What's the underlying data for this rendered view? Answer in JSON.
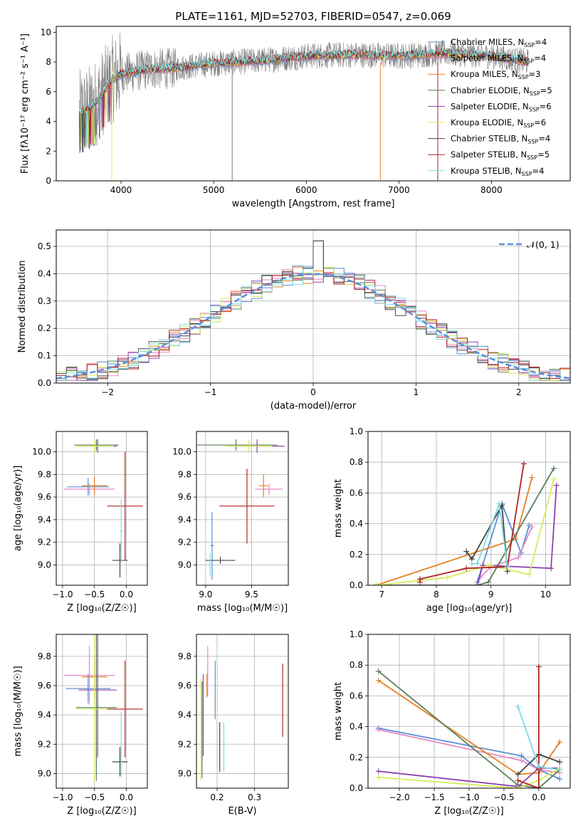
{
  "figure_title": "PLATE=1161, MJD=52703, FIBERID=0547, z=0.069",
  "colors": {
    "spec": "#808080",
    "gauss": "#5b8ddb",
    "chab_miles": "#5a8fd8",
    "salp_miles": "#e58ac4",
    "krou_miles": "#e67e22",
    "chab_elodie": "#5a7f5a",
    "salp_elodie": "#8e44ad",
    "krou_elodie": "#d4ec5a",
    "chab_stelib": "#444444",
    "salp_stelib": "#b22222",
    "krou_stelib": "#7fdbe0"
  },
  "legend_models": [
    {
      "name": "Chabrier MILES",
      "n": "4",
      "color": "#5a8fd8"
    },
    {
      "name": "Salpeter MILES",
      "n": "4",
      "color": "#e58ac4"
    },
    {
      "name": "Kroupa MILES",
      "n": "3",
      "color": "#e67e22"
    },
    {
      "name": "Chabrier ELODIE",
      "n": "5",
      "color": "#5a7f5a"
    },
    {
      "name": "Salpeter ELODIE",
      "n": "6",
      "color": "#8e44ad"
    },
    {
      "name": "Kroupa ELODIE",
      "n": "6",
      "color": "#d4ec5a"
    },
    {
      "name": "Chabrier STELIB",
      "n": "4",
      "color": "#444444"
    },
    {
      "name": "Salpeter STELIB",
      "n": "5",
      "color": "#b22222"
    },
    {
      "name": "Kroupa STELIB",
      "n": "4",
      "color": "#7fdbe0"
    }
  ],
  "chart_data": [
    {
      "type": "line",
      "id": "spectrum",
      "xlabel": "wavelength [Angstrom, rest frame]",
      "ylabel": "Flux [fλ10⁻¹⁷ erg cm⁻² s⁻¹ A⁻¹]",
      "xlim": [
        3300,
        8850
      ],
      "ylim": [
        0,
        10.4
      ],
      "xticks": [
        4000,
        5000,
        6000,
        7000,
        8000
      ],
      "yticks": [
        0,
        2,
        4,
        6,
        8,
        10
      ],
      "legend": "top-right",
      "x_range_data": [
        3550,
        8400
      ],
      "model_continuum_x": [
        3550,
        3700,
        3900,
        4000,
        4300,
        4600,
        5000,
        5500,
        6000,
        6500,
        7000,
        7500,
        8000,
        8400
      ],
      "model_continuum_y": [
        4.5,
        5.0,
        6.8,
        7.2,
        7.5,
        7.6,
        7.9,
        8.1,
        8.4,
        8.5,
        8.4,
        8.6,
        8.4,
        8.0
      ]
    },
    {
      "type": "line",
      "id": "residuals",
      "xlabel": "(data-model)/error",
      "ylabel": "Normed distribution",
      "xlim": [
        -2.5,
        2.5
      ],
      "ylim": [
        0,
        0.56
      ],
      "xticks": [
        -2,
        -1,
        0,
        1,
        2
      ],
      "yticks": [
        0.0,
        0.1,
        0.2,
        0.3,
        0.4,
        0.5
      ],
      "legend_label": "𝒩(0, 1)",
      "legend": "top-right",
      "gauss_sigma": 1.0
    },
    {
      "type": "scatter",
      "id": "age_vs_Z",
      "xlabel": "Z [log₁₀(Z/Z☉)]",
      "ylabel": "age  [log₁₀(age/yr)]",
      "xlim": [
        -1.1,
        0.33
      ],
      "ylim": [
        8.82,
        10.18
      ],
      "xticks": [
        -1.0,
        -0.5,
        0.0
      ],
      "yticks": [
        9.0,
        9.2,
        9.4,
        9.6,
        9.8,
        10.0
      ],
      "points": [
        {
          "x": -0.6,
          "y": 9.69,
          "xerr": 0.33,
          "yerr": 0.08,
          "color": "#5a8fd8"
        },
        {
          "x": -0.58,
          "y": 9.67,
          "xerr": 0.4,
          "yerr": 0.05,
          "color": "#e58ac4"
        },
        {
          "x": -0.5,
          "y": 9.7,
          "xerr": 0.2,
          "yerr": 0.08,
          "color": "#e67e22"
        },
        {
          "x": -0.47,
          "y": 10.06,
          "xerr": 0.35,
          "yerr": 0.05,
          "color": "#5a7f5a"
        },
        {
          "x": -0.45,
          "y": 10.05,
          "xerr": 0.3,
          "yerr": 0.06,
          "color": "#8e44ad"
        },
        {
          "x": -0.5,
          "y": 10.05,
          "xerr": 0.3,
          "yerr": 0.06,
          "color": "#d4ec5a"
        },
        {
          "x": -0.1,
          "y": 9.04,
          "xerr": 0.12,
          "yerr": 0.15,
          "color": "#444444"
        },
        {
          "x": -0.02,
          "y": 9.52,
          "xerr": 0.28,
          "yerr": 0.48,
          "color": "#b22222"
        },
        {
          "x": -0.08,
          "y": 9.3,
          "xerr": 0.02,
          "yerr": 0.28,
          "color": "#7fdbe0"
        }
      ]
    },
    {
      "type": "scatter",
      "id": "age_vs_mass",
      "xlabel": "mass [log₁₀(M/M☉)]",
      "ylabel": "",
      "xlim": [
        8.9,
        9.9
      ],
      "ylim": [
        8.82,
        10.18
      ],
      "xticks": [
        9.0,
        9.5
      ],
      "yticks": [
        9.0,
        9.2,
        9.4,
        9.6,
        9.8,
        10.0
      ],
      "points": [
        {
          "x": 9.07,
          "y": 9.17,
          "xerr": 0.02,
          "yerr": 0.3,
          "color": "#5a8fd8"
        },
        {
          "x": 9.69,
          "y": 9.67,
          "xerr": 0.15,
          "yerr": 0.05,
          "color": "#e58ac4"
        },
        {
          "x": 9.63,
          "y": 9.7,
          "xerr": 0.05,
          "yerr": 0.1,
          "color": "#e67e22"
        },
        {
          "x": 9.33,
          "y": 10.06,
          "xerr": 0.45,
          "yerr": 0.05,
          "color": "#5a7f5a"
        },
        {
          "x": 9.56,
          "y": 10.05,
          "xerr": 0.3,
          "yerr": 0.06,
          "color": "#8e44ad"
        },
        {
          "x": 9.47,
          "y": 10.05,
          "xerr": 0.25,
          "yerr": 0.06,
          "color": "#d4ec5a"
        },
        {
          "x": 9.16,
          "y": 9.04,
          "xerr": 0.16,
          "yerr": 0.03,
          "color": "#444444"
        },
        {
          "x": 9.45,
          "y": 9.52,
          "xerr": 0.3,
          "yerr": 0.33,
          "color": "#b22222"
        },
        {
          "x": 9.05,
          "y": 9.0,
          "xerr": 0.02,
          "yerr": 0.1,
          "color": "#7fdbe0"
        }
      ]
    },
    {
      "type": "line",
      "id": "massweight_vs_age",
      "xlabel": "age  [log₁₀(age/yr)]",
      "ylabel": "mass weight",
      "xlim": [
        6.75,
        10.45
      ],
      "ylim": [
        0,
        1.0
      ],
      "xticks": [
        7,
        8,
        9,
        10
      ],
      "yticks": [
        0.0,
        0.2,
        0.4,
        0.6,
        0.8,
        1.0
      ],
      "series": [
        {
          "color": "#5a8fd8",
          "points": [
            [
              8.75,
              0.02
            ],
            [
              9.2,
              0.53
            ],
            [
              9.55,
              0.21
            ],
            [
              9.7,
              0.39
            ]
          ]
        },
        {
          "color": "#e58ac4",
          "points": [
            [
              8.8,
              0.05
            ],
            [
              9.0,
              0.12
            ],
            [
              9.5,
              0.18
            ],
            [
              9.75,
              0.38
            ]
          ]
        },
        {
          "color": "#e67e22",
          "points": [
            [
              6.9,
              0.0
            ],
            [
              9.45,
              0.3
            ],
            [
              9.75,
              0.7
            ]
          ]
        },
        {
          "color": "#5a7f5a",
          "points": [
            [
              6.9,
              0.0
            ],
            [
              8.75,
              0.0
            ],
            [
              8.95,
              0.02
            ],
            [
              10.15,
              0.76
            ]
          ]
        },
        {
          "color": "#8e44ad",
          "points": [
            [
              8.75,
              0.0
            ],
            [
              8.85,
              0.13
            ],
            [
              10.1,
              0.11
            ],
            [
              10.2,
              0.65
            ]
          ]
        },
        {
          "color": "#d4ec5a",
          "points": [
            [
              6.9,
              0.0
            ],
            [
              8.2,
              0.05
            ],
            [
              8.95,
              0.13
            ],
            [
              9.7,
              0.07
            ],
            [
              10.15,
              0.69
            ]
          ]
        },
        {
          "color": "#444444",
          "points": [
            [
              8.55,
              0.22
            ],
            [
              8.65,
              0.17
            ],
            [
              9.2,
              0.52
            ],
            [
              9.3,
              0.09
            ]
          ]
        },
        {
          "color": "#b22222",
          "points": [
            [
              7.7,
              0.02
            ],
            [
              7.7,
              0.04
            ],
            [
              8.55,
              0.11
            ],
            [
              9.3,
              0.12
            ],
            [
              9.6,
              0.79
            ]
          ]
        },
        {
          "color": "#7fdbe0",
          "points": [
            [
              8.65,
              0.14
            ],
            [
              8.75,
              0.14
            ],
            [
              9.15,
              0.53
            ],
            [
              9.3,
              0.12
            ]
          ]
        }
      ]
    },
    {
      "type": "scatter",
      "id": "mass_vs_Z",
      "xlabel": "Z [log₁₀(Z/Z☉)]",
      "ylabel": "mass [log₁₀(M/M☉)]",
      "xlim": [
        -1.1,
        0.33
      ],
      "ylim": [
        8.9,
        9.95
      ],
      "xticks": [
        -1.0,
        -0.5,
        0.0
      ],
      "yticks": [
        9.0,
        9.2,
        9.4,
        9.6,
        9.8
      ],
      "points": [
        {
          "x": -0.6,
          "y": 9.58,
          "xerr": 0.35,
          "yerr": 0.1,
          "color": "#5a8fd8"
        },
        {
          "x": -0.58,
          "y": 9.67,
          "xerr": 0.4,
          "yerr": 0.2,
          "color": "#e58ac4"
        },
        {
          "x": -0.5,
          "y": 9.66,
          "xerr": 0.2,
          "yerr": 0.13,
          "color": "#e67e22"
        },
        {
          "x": -0.47,
          "y": 9.45,
          "xerr": 0.32,
          "yerr": 0.5,
          "color": "#5a7f5a"
        },
        {
          "x": -0.45,
          "y": 9.57,
          "xerr": 0.3,
          "yerr": 0.46,
          "color": "#8e44ad"
        },
        {
          "x": -0.5,
          "y": 9.44,
          "xerr": 0.3,
          "yerr": 0.5,
          "color": "#d4ec5a"
        },
        {
          "x": -0.1,
          "y": 9.08,
          "xerr": 0.12,
          "yerr": 0.1,
          "color": "#444444"
        },
        {
          "x": -0.02,
          "y": 9.44,
          "xerr": 0.28,
          "yerr": 0.33,
          "color": "#b22222"
        },
        {
          "x": -0.08,
          "y": 9.2,
          "xerr": 0.02,
          "yerr": 0.22,
          "color": "#7fdbe0"
        }
      ]
    },
    {
      "type": "scatter",
      "id": "mass_vs_ebv",
      "xlabel": "E(B-V)",
      "ylabel": "",
      "xlim": [
        0.145,
        0.39
      ],
      "ylim": [
        8.9,
        9.95
      ],
      "xticks": [
        0.2,
        0.3
      ],
      "yticks": [
        9.0,
        9.2,
        9.4,
        9.6,
        9.8
      ],
      "points": [
        {
          "x": 0.195,
          "y": 9.57,
          "yerr": 0.2,
          "color": "#5a8fd8"
        },
        {
          "x": 0.175,
          "y": 9.7,
          "yerr": 0.17,
          "color": "#e58ac4"
        },
        {
          "x": 0.173,
          "y": 9.6,
          "yerr": 0.08,
          "color": "#e67e22"
        },
        {
          "x": 0.16,
          "y": 9.3,
          "yerr": 0.33,
          "color": "#5a7f5a"
        },
        {
          "x": 0.163,
          "y": 9.4,
          "yerr": 0.28,
          "color": "#8e44ad"
        },
        {
          "x": 0.157,
          "y": 9.3,
          "yerr": 0.35,
          "color": "#d4ec5a"
        },
        {
          "x": 0.207,
          "y": 9.18,
          "yerr": 0.17,
          "color": "#444444"
        },
        {
          "x": 0.375,
          "y": 9.5,
          "yerr": 0.25,
          "color": "#b22222"
        },
        {
          "x": 0.218,
          "y": 9.18,
          "yerr": 0.17,
          "color": "#7fdbe0"
        }
      ]
    },
    {
      "type": "line",
      "id": "massweight_vs_Z",
      "xlabel": "Z [log₁₀(Z/Z☉)]",
      "ylabel": "mass weight",
      "xlim": [
        -2.45,
        0.45
      ],
      "ylim": [
        0,
        1.0
      ],
      "xticks": [
        -2.0,
        -1.5,
        -1.0,
        -0.5,
        0.0
      ],
      "yticks": [
        0.0,
        0.2,
        0.4,
        0.6,
        0.8,
        1.0
      ],
      "series": [
        {
          "color": "#5a8fd8",
          "points": [
            [
              -2.3,
              0.39
            ],
            [
              -0.25,
              0.21
            ],
            [
              0.0,
              0.12
            ],
            [
              0.3,
              0.06
            ]
          ]
        },
        {
          "color": "#e58ac4",
          "points": [
            [
              -2.3,
              0.38
            ],
            [
              -0.25,
              0.18
            ],
            [
              0.0,
              0.12
            ],
            [
              0.3,
              0.1
            ]
          ]
        },
        {
          "color": "#e67e22",
          "points": [
            [
              -2.3,
              0.7
            ],
            [
              -0.3,
              0.09
            ],
            [
              0.0,
              0.1
            ],
            [
              0.3,
              0.3
            ]
          ]
        },
        {
          "color": "#5a7f5a",
          "points": [
            [
              -2.3,
              0.76
            ],
            [
              -0.3,
              0.02
            ],
            [
              0.0,
              0.0
            ],
            [
              0.3,
              0.12
            ]
          ]
        },
        {
          "color": "#8e44ad",
          "points": [
            [
              -2.3,
              0.11
            ],
            [
              -0.3,
              0.01
            ],
            [
              0.0,
              0.13
            ],
            [
              0.3,
              0.13
            ]
          ]
        },
        {
          "color": "#d4ec5a",
          "points": [
            [
              -2.3,
              0.07
            ],
            [
              -0.3,
              0.0
            ],
            [
              0.0,
              0.05
            ],
            [
              0.3,
              0.13
            ]
          ]
        },
        {
          "color": "#444444",
          "points": [
            [
              -0.3,
              0.09
            ],
            [
              0.0,
              0.22
            ],
            [
              0.3,
              0.17
            ]
          ]
        },
        {
          "color": "#b22222",
          "points": [
            [
              -0.3,
              0.05
            ],
            [
              0.0,
              0.0
            ],
            [
              0.0,
              0.79
            ],
            [
              0.0,
              0.12
            ]
          ]
        },
        {
          "color": "#7fdbe0",
          "points": [
            [
              -0.3,
              0.53
            ],
            [
              0.0,
              0.14
            ],
            [
              0.3,
              0.12
            ]
          ]
        }
      ]
    }
  ]
}
